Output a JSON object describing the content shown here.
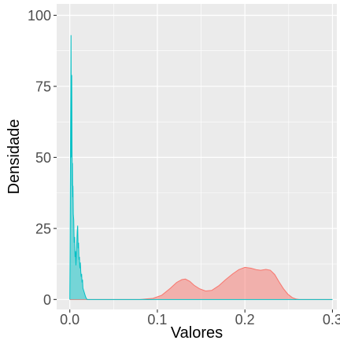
{
  "chart_data": {
    "type": "area",
    "title": "",
    "xlabel": "Valores",
    "ylabel": "Densidade",
    "xlim": [
      -0.015,
      0.305
    ],
    "ylim": [
      -3.5,
      104
    ],
    "xticks": [
      0.0,
      0.1,
      0.2,
      0.3
    ],
    "xtick_labels": [
      "0.0",
      "0.1",
      "0.2",
      "0.3"
    ],
    "yticks": [
      0,
      25,
      50,
      75,
      100
    ],
    "ytick_labels": [
      "0",
      "25",
      "50",
      "75",
      "100"
    ],
    "xminor": [
      0.05,
      0.15,
      0.25
    ],
    "yminor": [
      12.5,
      37.5,
      62.5,
      87.5
    ],
    "grid": true,
    "legend": "none",
    "colors": {
      "panel": "#ebebeb",
      "grid": "#ffffff",
      "tick": "#333333"
    },
    "series": [
      {
        "fill": "#f8766d",
        "fill_opacity": 0.5,
        "stroke": "#f8766d",
        "points": [
          [
            0.0,
            0
          ],
          [
            0.08,
            0
          ],
          [
            0.095,
            0.4
          ],
          [
            0.105,
            1.5
          ],
          [
            0.115,
            4.0
          ],
          [
            0.122,
            6.0
          ],
          [
            0.128,
            7.0
          ],
          [
            0.132,
            7.2
          ],
          [
            0.137,
            6.4
          ],
          [
            0.142,
            5.0
          ],
          [
            0.148,
            3.8
          ],
          [
            0.155,
            3.0
          ],
          [
            0.162,
            3.2
          ],
          [
            0.17,
            4.8
          ],
          [
            0.178,
            7.0
          ],
          [
            0.186,
            9.0
          ],
          [
            0.193,
            10.5
          ],
          [
            0.2,
            11.3
          ],
          [
            0.207,
            11.0
          ],
          [
            0.213,
            10.5
          ],
          [
            0.218,
            10.3
          ],
          [
            0.224,
            10.6
          ],
          [
            0.229,
            10.3
          ],
          [
            0.234,
            8.8
          ],
          [
            0.239,
            6.2
          ],
          [
            0.244,
            3.8
          ],
          [
            0.249,
            1.9
          ],
          [
            0.254,
            0.7
          ],
          [
            0.258,
            0.2
          ],
          [
            0.262,
            0
          ],
          [
            0.3,
            0
          ]
        ]
      },
      {
        "fill": "#00bfc4",
        "fill_opacity": 0.5,
        "stroke": "#00bfc4",
        "points": [
          [
            0.0,
            0
          ],
          [
            0.0003,
            15
          ],
          [
            0.0006,
            40
          ],
          [
            0.0009,
            60
          ],
          [
            0.0012,
            75
          ],
          [
            0.0014,
            93
          ],
          [
            0.0016,
            70
          ],
          [
            0.0018,
            50
          ],
          [
            0.002,
            68
          ],
          [
            0.0022,
            79
          ],
          [
            0.0025,
            55
          ],
          [
            0.0028,
            40
          ],
          [
            0.003,
            48
          ],
          [
            0.0033,
            36
          ],
          [
            0.0036,
            40
          ],
          [
            0.004,
            30
          ],
          [
            0.0045,
            28
          ],
          [
            0.005,
            20
          ],
          [
            0.0055,
            22
          ],
          [
            0.006,
            15
          ],
          [
            0.0065,
            17
          ],
          [
            0.007,
            12
          ],
          [
            0.0075,
            16
          ],
          [
            0.008,
            20
          ],
          [
            0.0085,
            24
          ],
          [
            0.009,
            26
          ],
          [
            0.0095,
            18
          ],
          [
            0.01,
            20
          ],
          [
            0.0105,
            14
          ],
          [
            0.011,
            15
          ],
          [
            0.0115,
            11
          ],
          [
            0.012,
            13
          ],
          [
            0.0125,
            10
          ],
          [
            0.013,
            8
          ],
          [
            0.0135,
            9
          ],
          [
            0.014,
            6
          ],
          [
            0.0145,
            7
          ],
          [
            0.015,
            4
          ],
          [
            0.016,
            3
          ],
          [
            0.017,
            2
          ],
          [
            0.018,
            1
          ],
          [
            0.019,
            0.3
          ],
          [
            0.02,
            0
          ],
          [
            0.3,
            0
          ]
        ]
      }
    ]
  }
}
